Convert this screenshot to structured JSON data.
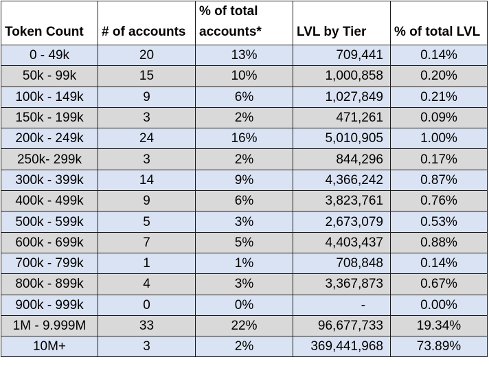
{
  "columns": [
    "Token Count",
    "# of accounts",
    "% of total accounts*",
    "LVL by Tier",
    "% of total LVL"
  ],
  "rows": [
    [
      "0 - 49k",
      "20",
      "13%",
      "709,441",
      "0.14%"
    ],
    [
      "50k - 99k",
      "15",
      "10%",
      "1,000,858",
      "0.20%"
    ],
    [
      "100k - 149k",
      "9",
      "6%",
      "1,027,849",
      "0.21%"
    ],
    [
      "150k - 199k",
      "3",
      "2%",
      "471,261",
      "0.09%"
    ],
    [
      "200k - 249k",
      "24",
      "16%",
      "5,010,905",
      "1.00%"
    ],
    [
      "250k- 299k",
      "3",
      "2%",
      "844,296",
      "0.17%"
    ],
    [
      "300k - 399k",
      "14",
      "9%",
      "4,366,242",
      "0.87%"
    ],
    [
      "400k - 499k",
      "9",
      "6%",
      "3,823,761",
      "0.76%"
    ],
    [
      "500k - 599k",
      "5",
      "3%",
      "2,673,079",
      "0.53%"
    ],
    [
      "600k - 699k",
      "7",
      "5%",
      "4,403,437",
      "0.88%"
    ],
    [
      "700k - 799k",
      "1",
      "1%",
      "708,848",
      "0.14%"
    ],
    [
      "800k - 899k",
      "4",
      "3%",
      "3,367,873",
      "0.67%"
    ],
    [
      "900k - 999k",
      "0",
      "0%",
      "-",
      "0.00%"
    ],
    [
      "1M - 9.999M",
      "33",
      "22%",
      "96,677,733",
      "19.34%"
    ],
    [
      "10M+",
      "3",
      "2%",
      "369,441,968",
      "73.89%"
    ]
  ]
}
